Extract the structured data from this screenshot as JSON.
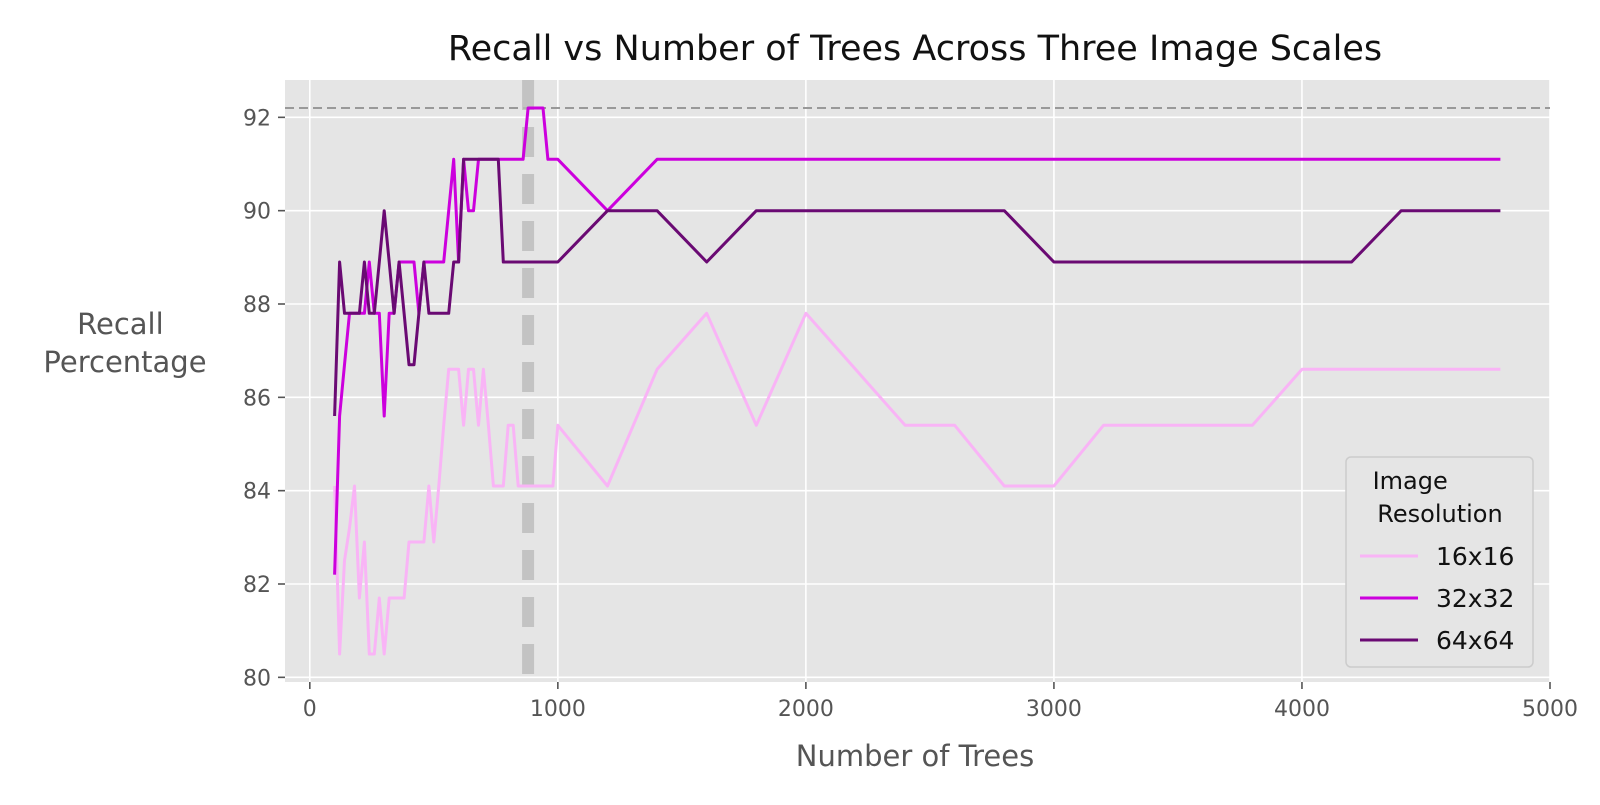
{
  "chart_data": {
    "type": "line",
    "title": "Recall vs Number of Trees Across Three Image Scales",
    "xlabel": "Number of Trees",
    "ylabel": [
      "Recall",
      "Percentage"
    ],
    "xlim": [
      -100,
      5000
    ],
    "ylim": [
      79.9,
      92.8
    ],
    "xticks": [
      0,
      1000,
      2000,
      3000,
      4000,
      5000
    ],
    "yticks": [
      80,
      82,
      84,
      86,
      88,
      90,
      92
    ],
    "grid": true,
    "legend": {
      "title": [
        "Image",
        "Resolution"
      ],
      "position": "lower-right"
    },
    "reference_lines": [
      {
        "orientation": "horizontal",
        "value": 92.2,
        "style": "dashed",
        "color": "#999999"
      },
      {
        "orientation": "vertical",
        "value": 880,
        "style": "dashed",
        "color": "#bbbbbb"
      }
    ],
    "series": [
      {
        "name": "16x16",
        "color": "#f9b4f6",
        "x": [
          100,
          120,
          140,
          160,
          180,
          200,
          220,
          240,
          260,
          280,
          300,
          320,
          340,
          360,
          380,
          400,
          420,
          440,
          460,
          480,
          500,
          520,
          540,
          560,
          580,
          600,
          620,
          640,
          660,
          680,
          700,
          720,
          740,
          760,
          780,
          800,
          820,
          840,
          860,
          880,
          900,
          920,
          940,
          960,
          980,
          1000,
          1200,
          1400,
          1600,
          1800,
          2000,
          2200,
          2400,
          2600,
          2800,
          3000,
          3200,
          3400,
          3600,
          3800,
          4000,
          4200,
          4400,
          4600,
          4800
        ],
        "values": [
          84.1,
          80.5,
          82.5,
          83.2,
          84.1,
          81.7,
          82.9,
          80.5,
          80.5,
          81.7,
          80.5,
          81.7,
          81.7,
          81.7,
          81.7,
          82.9,
          82.9,
          82.9,
          82.9,
          84.1,
          82.9,
          84.1,
          85.4,
          86.6,
          86.6,
          86.6,
          85.4,
          86.6,
          86.6,
          85.4,
          86.6,
          85.4,
          84.1,
          84.1,
          84.1,
          85.4,
          85.4,
          84.1,
          84.1,
          84.1,
          84.1,
          84.1,
          84.1,
          84.1,
          84.1,
          85.4,
          84.1,
          86.6,
          87.8,
          85.4,
          87.8,
          86.6,
          85.4,
          85.4,
          84.1,
          84.1,
          85.4,
          85.4,
          85.4,
          85.4,
          86.6,
          86.6,
          86.6,
          86.6,
          86.6
        ]
      },
      {
        "name": "32x32",
        "color": "#cc00dd",
        "x": [
          100,
          120,
          140,
          160,
          180,
          200,
          220,
          240,
          260,
          280,
          300,
          320,
          340,
          360,
          380,
          400,
          420,
          440,
          460,
          480,
          500,
          520,
          540,
          560,
          580,
          600,
          620,
          640,
          660,
          680,
          700,
          720,
          740,
          760,
          780,
          800,
          820,
          840,
          860,
          880,
          900,
          920,
          940,
          960,
          980,
          1000,
          1200,
          1400,
          1600,
          1800,
          2000,
          2200,
          2400,
          2600,
          2800,
          3000,
          3200,
          3400,
          3600,
          3800,
          4000,
          4200,
          4400,
          4600,
          4800
        ],
        "values": [
          82.2,
          85.6,
          86.7,
          87.8,
          87.8,
          87.8,
          87.8,
          88.9,
          87.8,
          87.8,
          85.6,
          87.8,
          87.8,
          88.9,
          88.9,
          88.9,
          88.9,
          87.8,
          88.9,
          88.9,
          88.9,
          88.9,
          88.9,
          90.0,
          91.1,
          88.9,
          91.1,
          90.0,
          90.0,
          91.1,
          91.1,
          91.1,
          91.1,
          91.1,
          91.1,
          91.1,
          91.1,
          91.1,
          91.1,
          92.2,
          92.2,
          92.2,
          92.2,
          91.1,
          91.1,
          91.1,
          90.0,
          91.1,
          91.1,
          91.1,
          91.1,
          91.1,
          91.1,
          91.1,
          91.1,
          91.1,
          91.1,
          91.1,
          91.1,
          91.1,
          91.1,
          91.1,
          91.1,
          91.1,
          91.1
        ]
      },
      {
        "name": "64x64",
        "color": "#6a0a73",
        "x": [
          100,
          120,
          140,
          160,
          180,
          200,
          220,
          240,
          260,
          280,
          300,
          320,
          340,
          360,
          380,
          400,
          420,
          440,
          460,
          480,
          500,
          520,
          540,
          560,
          580,
          600,
          620,
          640,
          660,
          680,
          700,
          720,
          740,
          760,
          780,
          800,
          820,
          840,
          860,
          880,
          900,
          920,
          940,
          960,
          980,
          1000,
          1200,
          1400,
          1600,
          1800,
          2000,
          2200,
          2400,
          2600,
          2800,
          3000,
          3200,
          3400,
          3600,
          3800,
          4000,
          4200,
          4400,
          4600,
          4800
        ],
        "values": [
          85.6,
          88.9,
          87.8,
          87.8,
          87.8,
          87.8,
          88.9,
          87.8,
          87.8,
          88.9,
          90.0,
          88.9,
          87.8,
          88.9,
          87.8,
          86.7,
          86.7,
          87.8,
          88.9,
          87.8,
          87.8,
          87.8,
          87.8,
          87.8,
          88.9,
          88.9,
          91.1,
          91.1,
          91.1,
          91.1,
          91.1,
          91.1,
          91.1,
          91.1,
          88.9,
          88.9,
          88.9,
          88.9,
          88.9,
          88.9,
          88.9,
          88.9,
          88.9,
          88.9,
          88.9,
          88.9,
          90.0,
          90.0,
          88.9,
          90.0,
          90.0,
          90.0,
          90.0,
          90.0,
          90.0,
          88.9,
          88.9,
          88.9,
          88.9,
          88.9,
          88.9,
          88.9,
          90.0,
          90.0,
          90.0
        ]
      }
    ]
  }
}
